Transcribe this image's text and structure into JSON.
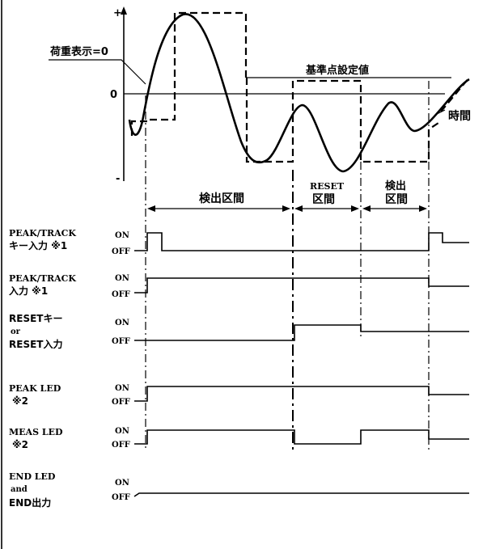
{
  "waveform": {
    "axis_plus": "+",
    "axis_minus": "-",
    "axis_zero": "0",
    "load_display_zero": "荷重表示=0",
    "reference_setting": "基準点設定値",
    "time_label": "時間"
  },
  "intervals": {
    "detect_1": "検出区間",
    "reset_line1": "RESET",
    "reset_line2": "区間",
    "detect_2_line1": "検出",
    "detect_2_line2": "区間"
  },
  "signals": [
    {
      "label_line1": "PEAK/TRACK",
      "label_line2": "キー入力 ※1",
      "label_line3": "",
      "on": "ON",
      "off": "OFF"
    },
    {
      "label_line1": "PEAK/TRACK",
      "label_line2": "入力 ※1",
      "label_line3": "",
      "on": "ON",
      "off": "OFF"
    },
    {
      "label_line1": "RESETキー",
      "label_line2": "or",
      "label_line3": "RESET入力",
      "on": "ON",
      "off": "OFF"
    },
    {
      "label_line1": "PEAK LED",
      "label_line2": "※2",
      "label_line3": "",
      "on": "ON",
      "off": "OFF"
    },
    {
      "label_line1": "MEAS LED",
      "label_line2": "※2",
      "label_line3": "",
      "on": "ON",
      "off": "OFF"
    },
    {
      "label_line1": "END LED",
      "label_line2": "and",
      "label_line3": "END出力",
      "on": "ON",
      "off": "OFF"
    }
  ]
}
